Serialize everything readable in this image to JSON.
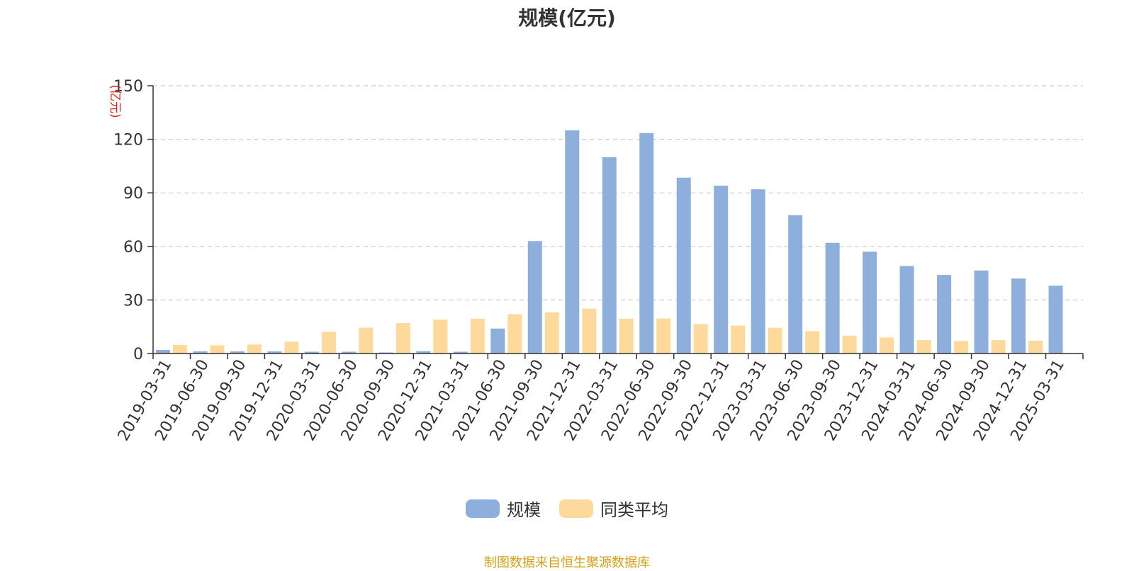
{
  "chart_data": {
    "type": "bar",
    "title": "规模(亿元)",
    "ylabel": "(亿元)",
    "xlabel": "",
    "ylim": [
      0,
      150
    ],
    "yticks": [
      0,
      30,
      60,
      90,
      120,
      150
    ],
    "grid": true,
    "legend_position": "bottom",
    "categories": [
      "2019-03-31",
      "2019-06-30",
      "2019-09-30",
      "2019-12-31",
      "2020-03-31",
      "2020-06-30",
      "2020-09-30",
      "2020-12-31",
      "2021-03-31",
      "2021-06-30",
      "2021-09-30",
      "2021-12-31",
      "2022-03-31",
      "2022-06-30",
      "2022-09-30",
      "2022-12-31",
      "2023-03-31",
      "2023-06-30",
      "2023-09-30",
      "2023-12-31",
      "2024-03-31",
      "2024-06-30",
      "2024-09-30",
      "2024-12-31",
      "2025-03-31"
    ],
    "series": [
      {
        "name": "规模",
        "color": "#8eaedb",
        "values": [
          2.0,
          1.2,
          1.2,
          1.2,
          1.0,
          1.0,
          0.6,
          1.3,
          1.0,
          14.0,
          63.0,
          125.0,
          110.0,
          123.5,
          98.5,
          94.0,
          92.0,
          77.5,
          62.0,
          57.0,
          49.0,
          44.0,
          46.5,
          42.0,
          38.0
        ]
      },
      {
        "name": "同类平均",
        "color": "#fdd99b",
        "values": [
          4.8,
          4.6,
          5.0,
          6.6,
          12.2,
          14.5,
          17.0,
          19.0,
          19.5,
          22.0,
          23.0,
          25.2,
          19.5,
          19.6,
          16.5,
          15.6,
          14.4,
          12.5,
          10.0,
          9.0,
          7.5,
          7.0,
          7.5,
          7.2,
          null
        ]
      }
    ]
  },
  "footer": {
    "source": "制图数据来自恒生聚源数据库"
  }
}
